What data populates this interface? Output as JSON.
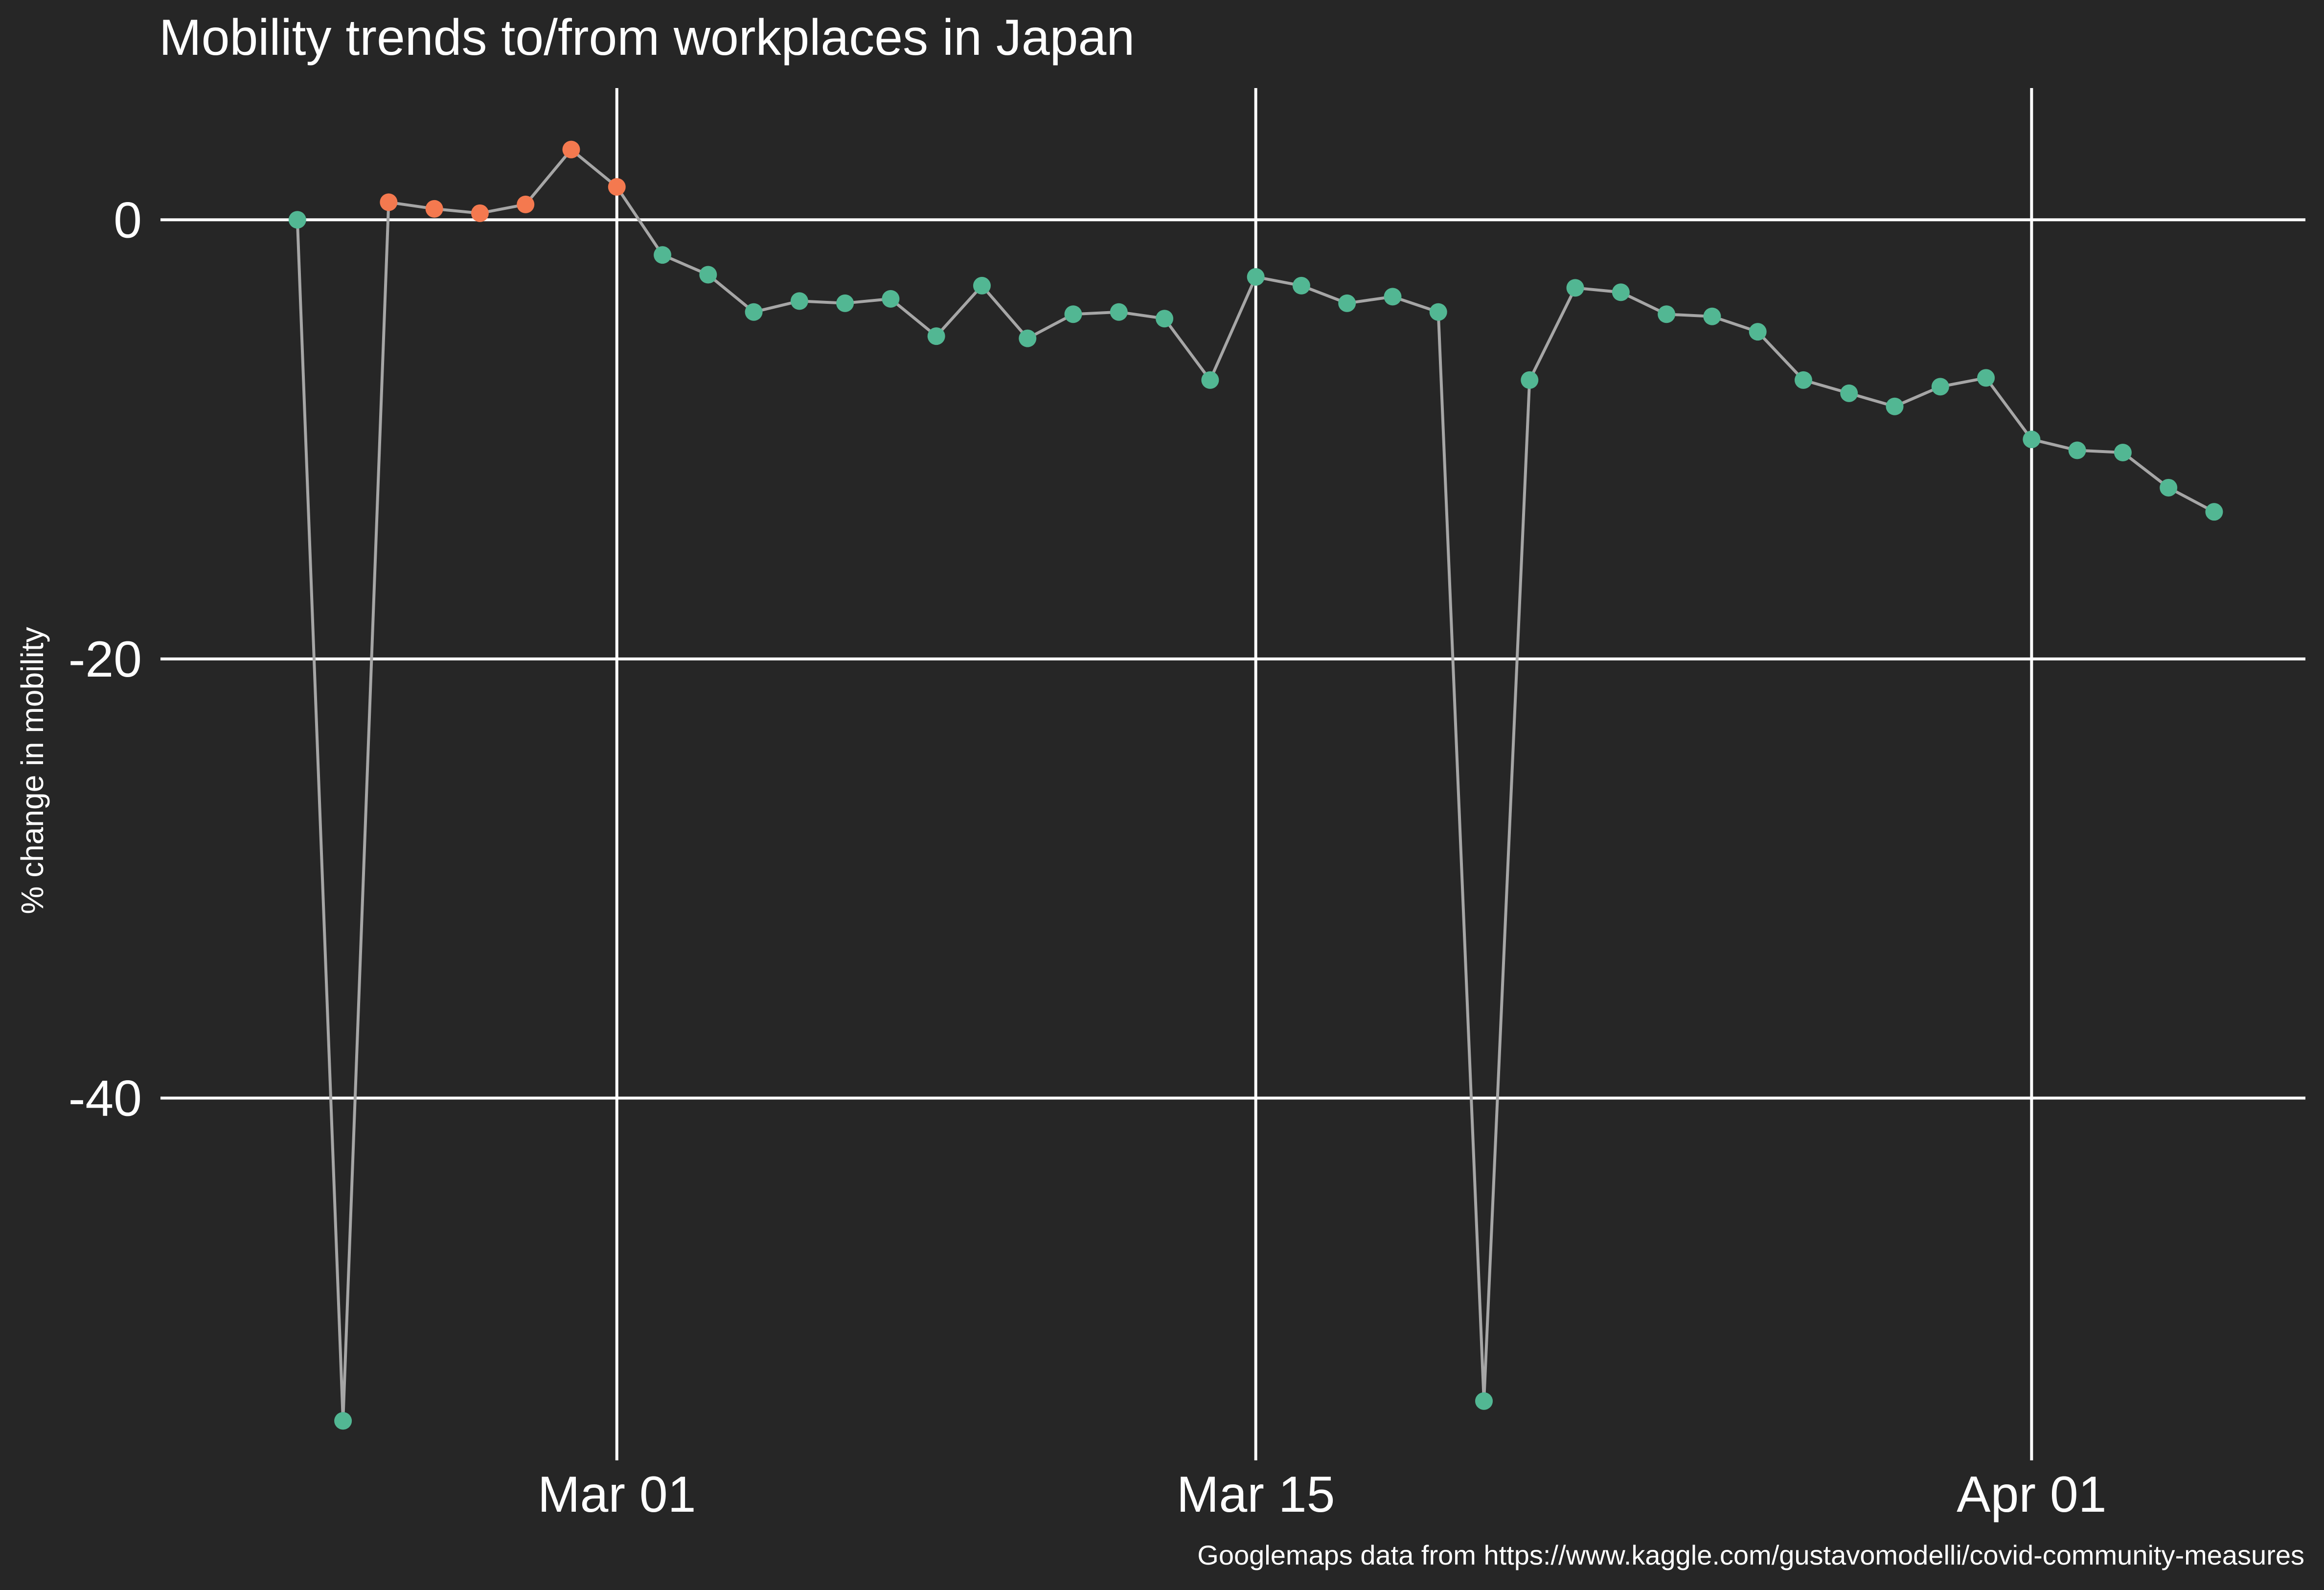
{
  "chart_data": {
    "type": "line",
    "title": "Mobility trends to/from workplaces in Japan",
    "xlabel": "",
    "ylabel": "% change in mobility",
    "caption": "Googlemaps data from https://www.kaggle.com/gustavomodelli/covid-community-measures",
    "ylim": [
      -56.5,
      6
    ],
    "xlim": [
      "2020-02-20",
      "2020-04-07"
    ],
    "y_ticks": [
      0,
      -20,
      -40
    ],
    "x_ticks": [
      {
        "date": "2020-03-01",
        "label": "Mar 01"
      },
      {
        "date": "2020-03-15",
        "label": "Mar 15"
      },
      {
        "date": "2020-04-01",
        "label": "Apr 01"
      }
    ],
    "grid": true,
    "legend": "none",
    "colors": {
      "background": "#262626",
      "line": "#a6a6a6",
      "normal": "#52b793",
      "highlight": "#f4794f",
      "grid": "#ffffff"
    },
    "series": [
      {
        "points": [
          {
            "x": "2020-02-23",
            "y": 0,
            "highlight": false
          },
          {
            "x": "2020-02-24",
            "y": -54.7,
            "highlight": false
          },
          {
            "x": "2020-02-25",
            "y": 0.8,
            "highlight": true
          },
          {
            "x": "2020-02-26",
            "y": 0.5,
            "highlight": true
          },
          {
            "x": "2020-02-27",
            "y": 0.3,
            "highlight": true
          },
          {
            "x": "2020-02-28",
            "y": 0.7,
            "highlight": true
          },
          {
            "x": "2020-02-29",
            "y": 3.2,
            "highlight": true
          },
          {
            "x": "2020-03-01",
            "y": 1.5,
            "highlight": true
          },
          {
            "x": "2020-03-02",
            "y": -1.6,
            "highlight": false
          },
          {
            "x": "2020-03-03",
            "y": -2.5,
            "highlight": false
          },
          {
            "x": "2020-03-04",
            "y": -4.2,
            "highlight": false
          },
          {
            "x": "2020-03-05",
            "y": -3.7,
            "highlight": false
          },
          {
            "x": "2020-03-06",
            "y": -3.8,
            "highlight": false
          },
          {
            "x": "2020-03-07",
            "y": -3.6,
            "highlight": false
          },
          {
            "x": "2020-03-08",
            "y": -5.3,
            "highlight": false
          },
          {
            "x": "2020-03-09",
            "y": -3.0,
            "highlight": false
          },
          {
            "x": "2020-03-10",
            "y": -5.4,
            "highlight": false
          },
          {
            "x": "2020-03-11",
            "y": -4.3,
            "highlight": false
          },
          {
            "x": "2020-03-12",
            "y": -4.2,
            "highlight": false
          },
          {
            "x": "2020-03-13",
            "y": -4.5,
            "highlight": false
          },
          {
            "x": "2020-03-14",
            "y": -7.3,
            "highlight": false
          },
          {
            "x": "2020-03-15",
            "y": -2.6,
            "highlight": false
          },
          {
            "x": "2020-03-16",
            "y": -3.0,
            "highlight": false
          },
          {
            "x": "2020-03-17",
            "y": -3.8,
            "highlight": false
          },
          {
            "x": "2020-03-18",
            "y": -3.5,
            "highlight": false
          },
          {
            "x": "2020-03-19",
            "y": -4.2,
            "highlight": false
          },
          {
            "x": "2020-03-20",
            "y": -53.8,
            "highlight": false
          },
          {
            "x": "2020-03-21",
            "y": -7.3,
            "highlight": false
          },
          {
            "x": "2020-03-22",
            "y": -3.1,
            "highlight": false
          },
          {
            "x": "2020-03-23",
            "y": -3.3,
            "highlight": false
          },
          {
            "x": "2020-03-24",
            "y": -4.3,
            "highlight": false
          },
          {
            "x": "2020-03-25",
            "y": -4.4,
            "highlight": false
          },
          {
            "x": "2020-03-26",
            "y": -5.1,
            "highlight": false
          },
          {
            "x": "2020-03-27",
            "y": -7.3,
            "highlight": false
          },
          {
            "x": "2020-03-28",
            "y": -7.9,
            "highlight": false
          },
          {
            "x": "2020-03-29",
            "y": -8.5,
            "highlight": false
          },
          {
            "x": "2020-03-30",
            "y": -7.6,
            "highlight": false
          },
          {
            "x": "2020-03-31",
            "y": -7.2,
            "highlight": false
          },
          {
            "x": "2020-04-01",
            "y": -10.0,
            "highlight": false
          },
          {
            "x": "2020-04-02",
            "y": -10.5,
            "highlight": false
          },
          {
            "x": "2020-04-03",
            "y": -10.6,
            "highlight": false
          },
          {
            "x": "2020-04-04",
            "y": -12.2,
            "highlight": false
          },
          {
            "x": "2020-04-05",
            "y": -13.3,
            "highlight": false
          }
        ]
      }
    ]
  }
}
